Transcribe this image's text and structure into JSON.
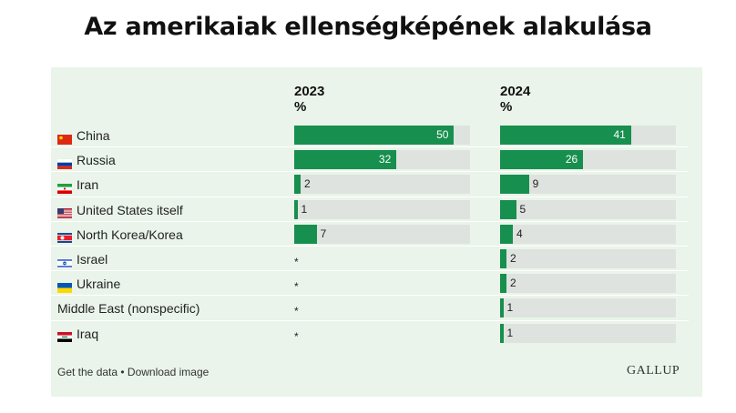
{
  "header": {
    "title": "Az amerikaiak ellenségképének alakulása"
  },
  "columns": [
    {
      "year": "2023",
      "unit": "%"
    },
    {
      "year": "2024",
      "unit": "%"
    }
  ],
  "chart_data": {
    "type": "bar",
    "categories": [
      "China",
      "Russia",
      "Iran",
      "United States itself",
      "North Korea/Korea",
      "Israel",
      "Ukraine",
      "Middle East (nonspecific)",
      "Iraq"
    ],
    "series": [
      {
        "name": "2023",
        "values": [
          50,
          32,
          2,
          1,
          7,
          null,
          null,
          null,
          null
        ],
        "labels": [
          "50",
          "32",
          "2",
          "1",
          "7",
          "*",
          "*",
          "*",
          "*"
        ]
      },
      {
        "name": "2024",
        "values": [
          41,
          26,
          9,
          5,
          4,
          2,
          2,
          1,
          1
        ],
        "labels": [
          "41",
          "26",
          "9",
          "5",
          "4",
          "2",
          "2",
          "1",
          "1"
        ]
      }
    ],
    "xlim": [
      0,
      55
    ],
    "flags": [
      "cn",
      "ru",
      "ir",
      "us",
      "kp",
      "il",
      "ua",
      "",
      "iq"
    ],
    "bar_color": "#178f4e",
    "track_color": "#dfe3df"
  },
  "footer": {
    "links": "Get the data • Download image",
    "logo": "GALLUP"
  }
}
